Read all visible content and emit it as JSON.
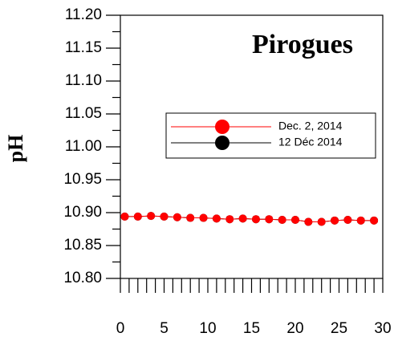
{
  "chart_data": {
    "type": "line",
    "title": "Pirogues",
    "y_label": "pH",
    "x": [
      0.5,
      2,
      3.5,
      5,
      6.5,
      8,
      9.5,
      11,
      12.5,
      14,
      15.5,
      17,
      18.5,
      20,
      21.5,
      23,
      24.5,
      26,
      27.5,
      29
    ],
    "series": [
      {
        "name": "12 Déc 2014",
        "color": "#000000",
        "values": [
          10.894,
          10.894,
          10.895,
          10.894,
          10.893,
          10.892,
          10.892,
          10.891,
          10.89,
          10.891,
          10.89,
          10.89,
          10.889,
          10.889,
          10.886,
          10.886,
          10.888,
          10.889,
          10.888,
          10.888
        ]
      },
      {
        "name": "Dec. 2, 2014",
        "color": "#ff0000",
        "values": [
          10.894,
          10.894,
          10.895,
          10.894,
          10.893,
          10.892,
          10.892,
          10.891,
          10.89,
          10.891,
          10.89,
          10.89,
          10.889,
          10.889,
          10.886,
          10.886,
          10.888,
          10.889,
          10.888,
          10.888
        ]
      }
    ],
    "xlim": [
      0,
      30
    ],
    "xticks": [
      0,
      5,
      10,
      15,
      20,
      25,
      30
    ],
    "ylim": [
      10.8,
      11.2
    ],
    "yticks": [
      {
        "value": 10.8,
        "label": "10.80"
      },
      {
        "value": 10.85,
        "label": "10.85"
      },
      {
        "value": 10.9,
        "label": "10.90"
      },
      {
        "value": 10.95,
        "label": "10.95"
      },
      {
        "value": 11,
        "label": "11.00"
      },
      {
        "value": 11.05,
        "label": "11.05"
      },
      {
        "value": 11.1,
        "label": "11.10"
      },
      {
        "value": 11.15,
        "label": "11.15"
      },
      {
        "value": 11.2,
        "label": "11.20"
      }
    ],
    "legend_order": [
      1,
      0
    ]
  }
}
